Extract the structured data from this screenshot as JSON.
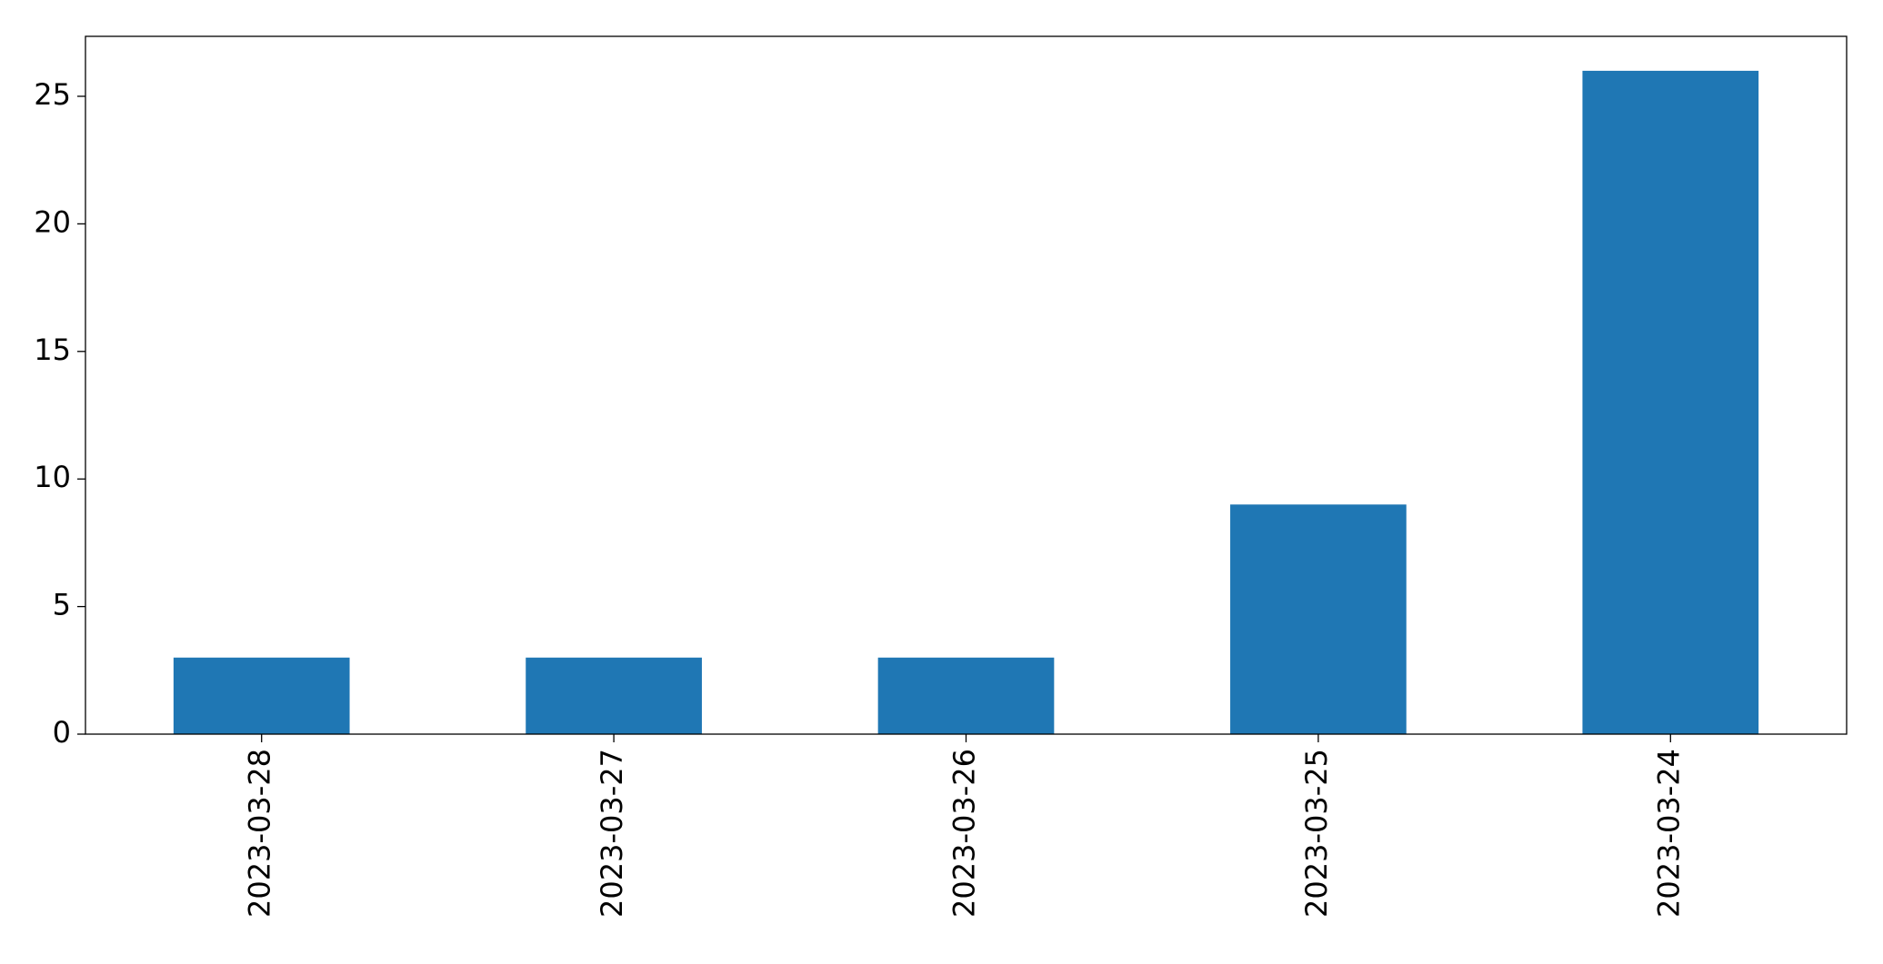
{
  "chart_data": {
    "type": "bar",
    "categories": [
      "2023-03-28",
      "2023-03-27",
      "2023-03-26",
      "2023-03-25",
      "2023-03-24"
    ],
    "values": [
      3,
      3,
      3,
      9,
      26
    ],
    "color": "#1f77b4",
    "ylim": [
      0,
      27.35
    ],
    "yticks": [
      0,
      5,
      10,
      15,
      20,
      25
    ],
    "grid": false
  }
}
